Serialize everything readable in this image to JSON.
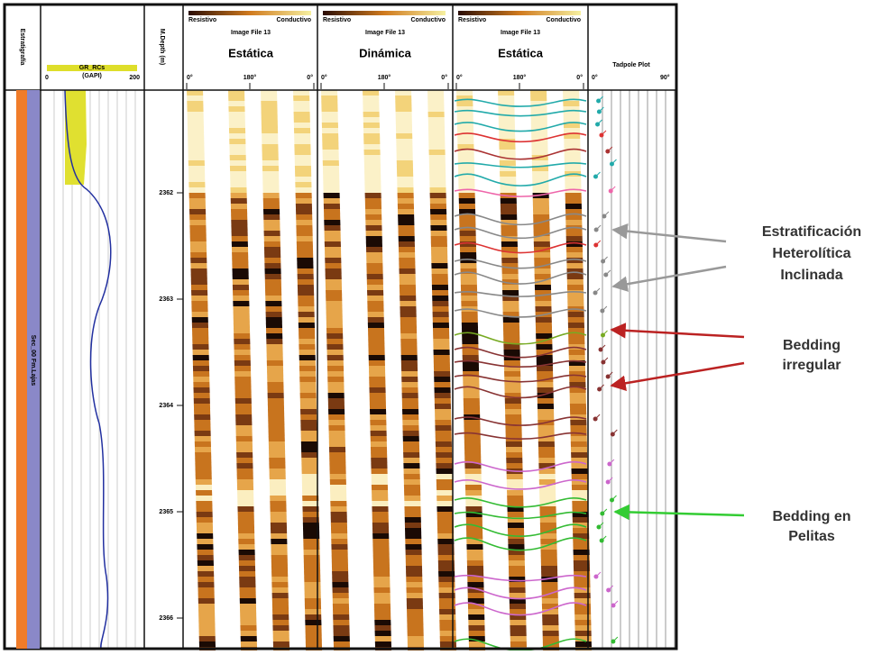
{
  "tracks": {
    "stratigraphy": {
      "title": "Estratigrafía",
      "label": "Sec_00 Fm.Lajas"
    },
    "gr": {
      "curve": "GR_RCs",
      "unit": "(GAPI)",
      "min": "0",
      "max": "200"
    },
    "depth": {
      "title": "M.Depth (m)",
      "ticks": [
        "2362",
        "2363",
        "2364",
        "2365",
        "2366"
      ]
    },
    "images": [
      {
        "left": "Resistivo",
        "right": "Conductivo",
        "file": "Image File 13",
        "title": "Estática",
        "ticks": [
          "0°",
          "180°",
          "0°"
        ]
      },
      {
        "left": "Resistivo",
        "right": "Conductivo",
        "file": "Image File 13",
        "title": "Dinámica",
        "ticks": [
          "0°",
          "180°",
          "0°"
        ]
      },
      {
        "left": "Resistivo",
        "right": "Conductivo",
        "file": "Image File 13",
        "title": "Estática",
        "ticks": [
          "0°",
          "180°",
          "0°"
        ]
      }
    ],
    "tadpole": {
      "title": "Tadpole Plot",
      "ticks": [
        "0°",
        "90°"
      ]
    }
  },
  "annotations": [
    {
      "lines": [
        "Estratificación",
        "Heterolítica",
        "Inclinada"
      ]
    },
    {
      "lines": [
        "Bedding",
        "irregular"
      ]
    },
    {
      "lines": [
        "Bedding en",
        "Pelitas"
      ]
    }
  ]
}
